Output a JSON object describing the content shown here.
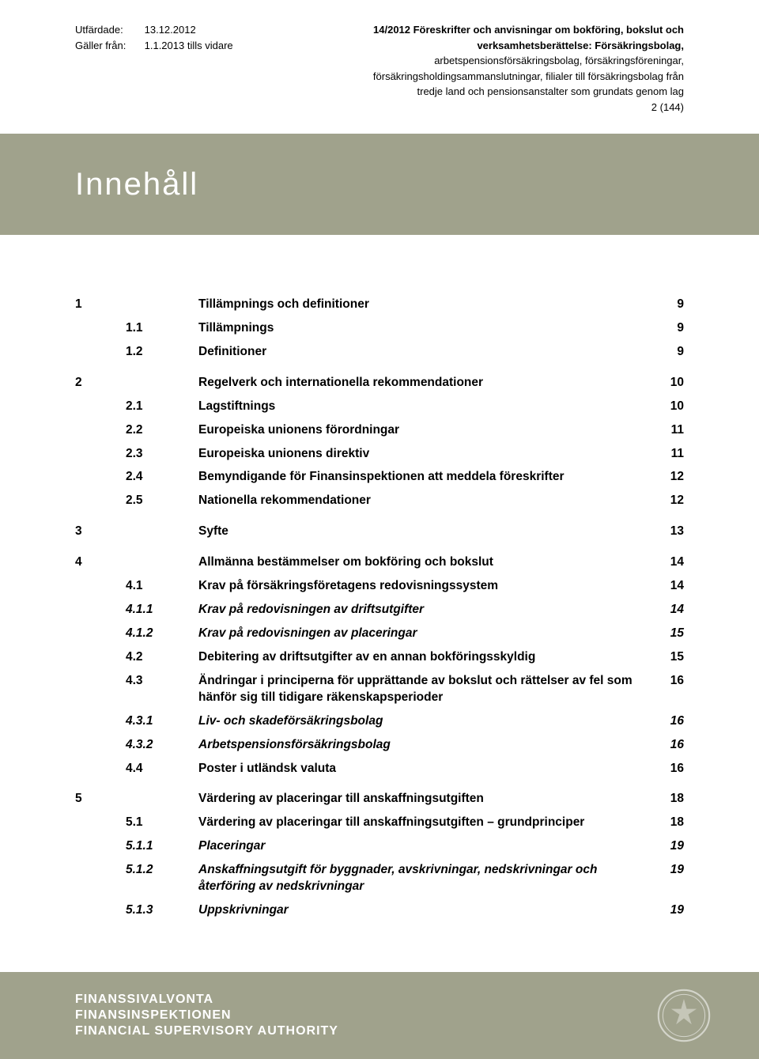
{
  "colors": {
    "band_bg": "#a0a28c",
    "band_text": "#ffffff",
    "page_bg": "#ffffff",
    "text": "#000000"
  },
  "typography": {
    "header_fontsize_pt": 10,
    "title_fontsize_pt": 30,
    "body_fontsize_pt": 11.5
  },
  "header": {
    "issued_label": "Utfärdade:",
    "issued_value": "13.12.2012",
    "valid_label": "Gäller från:",
    "valid_value": "1.1.2013 tills vidare",
    "doc_title_line1": "14/2012 Föreskrifter och anvisningar om bokföring, bokslut och",
    "doc_title_line2": "verksamhetsberättelse: Försäkringsbolag,",
    "doc_title_line3": "arbetspensionsförsäkringsbolag, försäkringsföreningar,",
    "doc_title_line4": "försäkringsholdingsammanslutningar, filialer till försäkringsbolag från",
    "doc_title_line5": "tredje land och pensionsanstalter som grundats genom lag",
    "page_of": "2 (144)"
  },
  "band": {
    "title": "Innehåll"
  },
  "toc": [
    {
      "n": "1",
      "s": "",
      "t": "Tillämpnings och definitioner",
      "p": "9",
      "bold": true,
      "gap": true
    },
    {
      "n": "",
      "s": "1.1",
      "t": "Tillämpnings",
      "p": "9",
      "bold": true
    },
    {
      "n": "",
      "s": "1.2",
      "t": "Definitioner",
      "p": "9",
      "bold": true
    },
    {
      "n": "2",
      "s": "",
      "t": "Regelverk och internationella rekommendationer",
      "p": "10",
      "bold": true,
      "gap": true
    },
    {
      "n": "",
      "s": "2.1",
      "t": "Lagstiftnings",
      "p": "10",
      "bold": true
    },
    {
      "n": "",
      "s": "2.2",
      "t": "Europeiska unionens förordningar",
      "p": "11",
      "bold": true
    },
    {
      "n": "",
      "s": "2.3",
      "t": "Europeiska unionens direktiv",
      "p": "11",
      "bold": true
    },
    {
      "n": "",
      "s": "2.4",
      "t": "Bemyndigande för Finansinspektionen att meddela föreskrifter",
      "p": "12",
      "bold": true
    },
    {
      "n": "",
      "s": "2.5",
      "t": "Nationella rekommendationer",
      "p": "12",
      "bold": true
    },
    {
      "n": "3",
      "s": "",
      "t": "Syfte",
      "p": "13",
      "bold": true,
      "gap": true
    },
    {
      "n": "4",
      "s": "",
      "t": "Allmänna bestämmelser om bokföring och bokslut",
      "p": "14",
      "bold": true,
      "gap": true
    },
    {
      "n": "",
      "s": "4.1",
      "t": "Krav på försäkringsföretagens redovisningssystem",
      "p": "14",
      "bold": true
    },
    {
      "n": "",
      "s": "4.1.1",
      "t": "Krav på redovisningen av driftsutgifter",
      "p": "14",
      "italic": true,
      "bold": true
    },
    {
      "n": "",
      "s": "4.1.2",
      "t": "Krav på redovisningen av placeringar",
      "p": "15",
      "italic": true,
      "bold": true
    },
    {
      "n": "",
      "s": "4.2",
      "t": "Debitering av driftsutgifter av en annan bokföringsskyldig",
      "p": "15",
      "bold": true
    },
    {
      "n": "",
      "s": "4.3",
      "t": "Ändringar i principerna för upprättande av bokslut och rättelser av fel som hänför sig till tidigare räkenskapsperioder",
      "p": "16",
      "bold": true
    },
    {
      "n": "",
      "s": "4.3.1",
      "t": "Liv- och skadeförsäkringsbolag",
      "p": "16",
      "italic": true,
      "bold": true
    },
    {
      "n": "",
      "s": "4.3.2",
      "t": "Arbetspensionsförsäkringsbolag",
      "p": "16",
      "italic": true,
      "bold": true
    },
    {
      "n": "",
      "s": "4.4",
      "t": "Poster i utländsk valuta",
      "p": "16",
      "bold": true
    },
    {
      "n": "5",
      "s": "",
      "t": "Värdering av placeringar till anskaffningsutgiften",
      "p": "18",
      "bold": true,
      "gap": true
    },
    {
      "n": "",
      "s": "5.1",
      "t": "Värdering av placeringar till anskaffningsutgiften – grundprinciper",
      "p": "18",
      "bold": true
    },
    {
      "n": "",
      "s": "5.1.1",
      "t": "Placeringar",
      "p": "19",
      "italic": true,
      "bold": true
    },
    {
      "n": "",
      "s": "5.1.2",
      "t": "Anskaffningsutgift för byggnader, avskrivningar, nedskrivningar och återföring av nedskrivningar",
      "p": "19",
      "italic": true,
      "bold": true
    },
    {
      "n": "",
      "s": "5.1.3",
      "t": "Uppskrivningar",
      "p": "19",
      "italic": true,
      "bold": true
    }
  ],
  "footer": {
    "line1": "FINANSSIVALVONTA",
    "line2": "FINANSINSPEKTIONEN",
    "line3": "FINANCIAL SUPERVISORY AUTHORITY"
  }
}
